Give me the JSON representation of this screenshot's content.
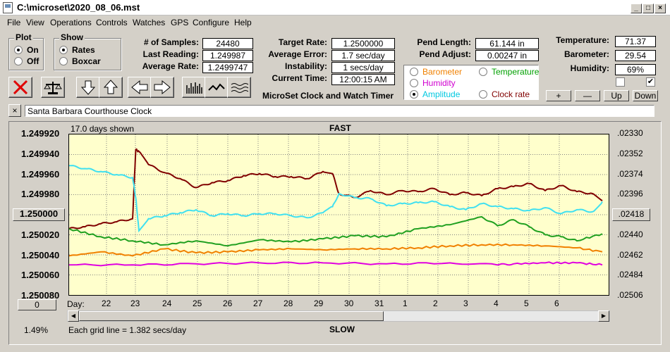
{
  "window": {
    "title": "C:\\microset\\2020_08_06.mst"
  },
  "menu": [
    "File",
    "View",
    "Operations",
    "Controls",
    "Watches",
    "GPS",
    "Configure",
    "Help"
  ],
  "plot_group": {
    "title": "Plot",
    "on": "On",
    "off": "Off",
    "selected": "On"
  },
  "show_group": {
    "title": "Show",
    "rates": "Rates",
    "boxcar": "Boxcar",
    "selected": "Rates"
  },
  "stats": {
    "samples_label": "# of Samples:",
    "samples": "24480",
    "last_label": "Last Reading:",
    "last": "1.249987",
    "avg_rate_label": "Average Rate:",
    "avg_rate": "1.2499747",
    "target_label": "Target Rate:",
    "target": "1.2500000",
    "avg_err_label": "Average Error:",
    "avg_err": "1.7 sec/day",
    "instab_label": "Instability:",
    "instab": "1 secs/day",
    "time_label": "Current Time:",
    "time": "12:00:15 AM",
    "pend_len_label": "Pend Length:",
    "pend_len": "61.144 in",
    "pend_adj_label": "Pend Adjust:",
    "pend_adj": "0.00247 in",
    "temp_label": "Temperature:",
    "temp": "71.37",
    "baro_label": "Barometer:",
    "baro": "29.54",
    "hum_label": "Humidity:",
    "hum": "69%"
  },
  "app_caption": "MicroSet Clock and Watch Timer",
  "sensor_options": [
    {
      "label": "Barometer",
      "color": "#f08000",
      "checked": false
    },
    {
      "label": "Temperature",
      "color": "#00a000",
      "checked": false
    },
    {
      "label": "Humidity",
      "color": "#d000d0",
      "checked": false
    },
    {
      "label": "Amplitude",
      "color": "#00c8e0",
      "checked": true
    },
    {
      "label": "Clock rate",
      "color": "#800000",
      "checked": false
    }
  ],
  "adjust_buttons": [
    "+",
    "—",
    "Up",
    "Down"
  ],
  "checkboxes": [
    false,
    true
  ],
  "clock_name": "Santa Barbara Courthouse Clock",
  "chart_header": {
    "days_shown": "17.0 days shown",
    "top": "FAST",
    "bottom": "SLOW",
    "grid_note": "Each grid line = 1.382 secs/day",
    "percent": "1.49%",
    "day_label": "Day:",
    "zero_btn": "0"
  },
  "colors": {
    "plot_bg": "#ffffcc",
    "rate": "#800000",
    "amplitude": "#40e0f0",
    "temperature": "#20a020",
    "barometer": "#f08000",
    "humidity": "#e000e0"
  },
  "chart_data": {
    "type": "line",
    "x_label": "Day",
    "x_ticks": [
      "22",
      "23",
      "24",
      "25",
      "26",
      "27",
      "28",
      "29",
      "30",
      "31",
      "1",
      "2",
      "3",
      "4",
      "5",
      "6"
    ],
    "y_left_ticks": [
      "1.249920",
      "1.249940",
      "1.249960",
      "1.249980",
      "1.250000",
      "1.250020",
      "1.250040",
      "1.250060",
      "1.250080"
    ],
    "y_right_ticks": [
      ".02330",
      ".02352",
      ".02374",
      ".02396",
      ".02418",
      ".02440",
      ".02462",
      ".02484",
      ".02506"
    ],
    "y_left_range": [
      1.24992,
      1.25008
    ],
    "y_right_range": [
      0.0233,
      0.02506
    ],
    "x_range_days": [
      0,
      17.0
    ],
    "series": [
      {
        "name": "Clock rate",
        "color": "#800000",
        "axis": "left",
        "days": [
          0,
          0.5,
          1.0,
          1.5,
          2.0,
          2.1,
          2.2,
          2.5,
          3.0,
          3.5,
          4.0,
          4.5,
          5.0,
          5.5,
          6.0,
          6.5,
          7.0,
          7.5,
          8.0,
          8.3,
          8.5,
          9.0,
          9.5,
          10.0,
          10.5,
          11.0,
          11.5,
          12.0,
          12.5,
          13.0,
          13.5,
          14.0,
          14.5,
          15.0,
          15.5,
          16.0,
          16.5,
          16.8
        ],
        "values": [
          1.250014,
          1.250012,
          1.250009,
          1.250007,
          1.250004,
          1.249935,
          1.249937,
          1.24995,
          1.249958,
          1.249964,
          1.249973,
          1.249968,
          1.249966,
          1.249961,
          1.249959,
          1.249962,
          1.249962,
          1.249964,
          1.249957,
          1.249959,
          1.249979,
          1.249983,
          1.249976,
          1.24998,
          1.249976,
          1.249977,
          1.249974,
          1.24998,
          1.249978,
          1.249981,
          1.249974,
          1.249972,
          1.249969,
          1.249976,
          1.249971,
          1.249977,
          1.249979,
          1.249986
        ]
      },
      {
        "name": "Amplitude",
        "color": "#40e0f0",
        "axis": "left",
        "days": [
          0,
          0.5,
          1.0,
          1.5,
          2.0,
          2.1,
          2.2,
          2.5,
          3.0,
          3.5,
          4.0,
          4.5,
          5.0,
          5.5,
          6.0,
          6.5,
          7.0,
          7.5,
          8.0,
          8.3,
          8.5,
          9.0,
          9.5,
          10.0,
          10.5,
          11.0,
          11.5,
          12.0,
          12.5,
          13.0,
          13.5,
          14.0,
          14.5,
          15.0,
          15.5,
          16.0,
          16.5,
          16.8
        ],
        "values": [
          1.249951,
          1.249954,
          1.249957,
          1.24996,
          1.249963,
          1.249983,
          1.250016,
          1.250004,
          1.250001,
          1.249998,
          1.249995,
          1.250001,
          1.249999,
          1.250001,
          1.249999,
          1.249999,
          1.250001,
          1.250003,
          1.249998,
          1.249992,
          1.249979,
          1.249983,
          1.249984,
          1.249991,
          1.249989,
          1.249988,
          1.249987,
          1.249992,
          1.249995,
          1.249989,
          1.249992,
          1.249994,
          1.249996,
          1.249993,
          1.249999,
          1.249995,
          1.249997,
          1.249987
        ]
      },
      {
        "name": "Temperature",
        "color": "#20a020",
        "axis": "left",
        "days": [
          0,
          1,
          2,
          3,
          4,
          5,
          6,
          7,
          8,
          9,
          10,
          11,
          12,
          13,
          13.5,
          14,
          14.5,
          15,
          15.5,
          16,
          16.8
        ],
        "values": [
          1.250014,
          1.250022,
          1.250026,
          1.25003,
          1.250026,
          1.250031,
          1.250025,
          1.250027,
          1.250024,
          1.250021,
          1.250022,
          1.250014,
          1.25001,
          1.250002,
          1.250011,
          1.250005,
          1.250012,
          1.25002,
          1.250022,
          1.250026,
          1.250019
        ]
      },
      {
        "name": "Barometer",
        "color": "#f08000",
        "axis": "left",
        "days": [
          0,
          1,
          2,
          3,
          4,
          5,
          6,
          7,
          8,
          9,
          10,
          11,
          12,
          13,
          14,
          15,
          16,
          16.8
        ],
        "values": [
          1.250041,
          1.250037,
          1.250041,
          1.250034,
          1.250038,
          1.250037,
          1.250035,
          1.250034,
          1.250035,
          1.250034,
          1.250034,
          1.250033,
          1.250031,
          1.25003,
          1.25003,
          1.250031,
          1.250033,
          1.250037
        ]
      },
      {
        "name": "Humidity",
        "color": "#e000e0",
        "axis": "left",
        "days": [
          0,
          2,
          4,
          6,
          8,
          10,
          12,
          13.5,
          14,
          15,
          16,
          16.8
        ],
        "values": [
          1.25005,
          1.25005,
          1.250049,
          1.250048,
          1.250048,
          1.250049,
          1.250048,
          1.25005,
          1.250049,
          1.250048,
          1.250048,
          1.25005
        ]
      }
    ],
    "grid": true,
    "title": "",
    "ylabel": ""
  }
}
